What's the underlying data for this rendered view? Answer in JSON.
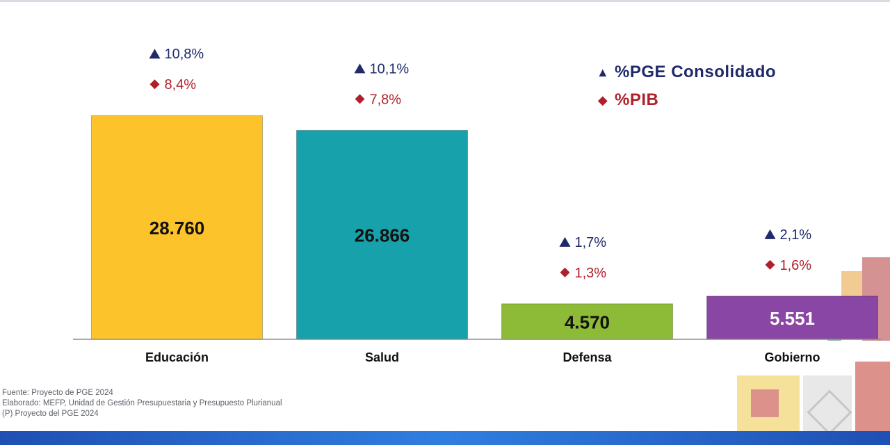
{
  "chart_data": {
    "type": "bar",
    "categories": [
      "Educación",
      "Salud",
      "Defensa",
      "Gobierno"
    ],
    "values": [
      28760,
      26866,
      4570,
      5551
    ],
    "value_labels": [
      "28.760",
      "26.866",
      "4.570",
      "5.551"
    ],
    "bar_colors": [
      "#FDC32A",
      "#17A1AB",
      "#8DBB37",
      "#8A46A4"
    ],
    "value_label_colors": [
      "#111111",
      "#111111",
      "#111111",
      "#ffffff"
    ],
    "pge_labels": [
      "10,8%",
      "10,1%",
      "1,7%",
      "2,1%"
    ],
    "pib_labels": [
      "8,4%",
      "7,8%",
      "1,3%",
      "1,6%"
    ],
    "ylim": [
      0,
      32000
    ],
    "grid": false
  },
  "legend": {
    "pge": "%PGE Consolidado",
    "pib": "%PIB",
    "pge_color": "#1F2A6B",
    "pib_color": "#B0202A",
    "pge_marker": "triangle-up",
    "pib_marker": "diamond"
  },
  "notes": {
    "source": "Fuente: Proyecto de PGE 2024",
    "prepared": "Elaborado: MEFP, Unidad de Gestión Presupuestaria y Presupuesto Plurianual",
    "abbrev": "(P) Proyecto del PGE 2024"
  }
}
